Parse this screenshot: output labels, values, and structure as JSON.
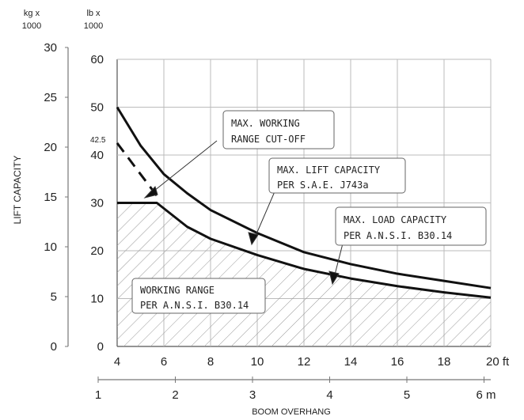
{
  "chart_data": {
    "type": "line",
    "x_ft_ticks": [
      "4",
      "6",
      "8",
      "10",
      "12",
      "14",
      "16",
      "18",
      "20 ft"
    ],
    "x_m_ticks": [
      "1",
      "2",
      "3",
      "4",
      "5",
      "6 m"
    ],
    "xlabel": "BOOM OVERHANG",
    "ylabel": "LIFT CAPACITY",
    "y_lb_unit": [
      "lb x",
      "1000"
    ],
    "y_kg_unit": [
      "kg x",
      "1000"
    ],
    "y_lb_ticks": [
      "0",
      "10",
      "20",
      "30",
      "40",
      "50",
      "60"
    ],
    "y_kg_ticks": [
      "0",
      "5",
      "10",
      "15",
      "20",
      "25",
      "30"
    ],
    "xlim_ft": [
      4,
      20
    ],
    "ylim_lb1000": [
      0,
      60
    ],
    "grid": true,
    "marker_label": "42.5",
    "series": [
      {
        "name": "MAX. LIFT CAPACITY PER S.A.E. J743a",
        "style": "solid",
        "x": [
          4,
          5,
          6,
          7,
          8,
          10,
          12,
          14,
          16,
          18,
          20
        ],
        "y": [
          50,
          42,
          36,
          32,
          28.5,
          23.7,
          19.7,
          17.2,
          15.2,
          13.7,
          12.2
        ]
      },
      {
        "name": "MAX. LOAD CAPACITY PER A.N.S.I. B30.14",
        "style": "solid",
        "x": [
          4,
          5.7,
          7,
          8,
          10,
          12,
          14,
          16,
          18,
          20
        ],
        "y": [
          30,
          30,
          25,
          22.5,
          19.1,
          16.2,
          14.2,
          12.6,
          11.3,
          10.2
        ]
      },
      {
        "name": "MAX. WORKING RANGE CUT-OFF",
        "style": "dashed",
        "x": [
          4,
          5,
          5.7
        ],
        "y": [
          42.5,
          36,
          31.5
        ]
      }
    ],
    "annotations": [
      {
        "lines": [
          "MAX. WORKING",
          "RANGE CUT-OFF"
        ]
      },
      {
        "lines": [
          "MAX. LIFT CAPACITY",
          "PER S.A.E. J743a"
        ]
      },
      {
        "lines": [
          "MAX. LOAD CAPACITY",
          "PER A.N.S.I. B30.14"
        ]
      },
      {
        "lines": [
          "WORKING RANGE",
          "PER A.N.S.I. B30.14"
        ]
      }
    ]
  }
}
